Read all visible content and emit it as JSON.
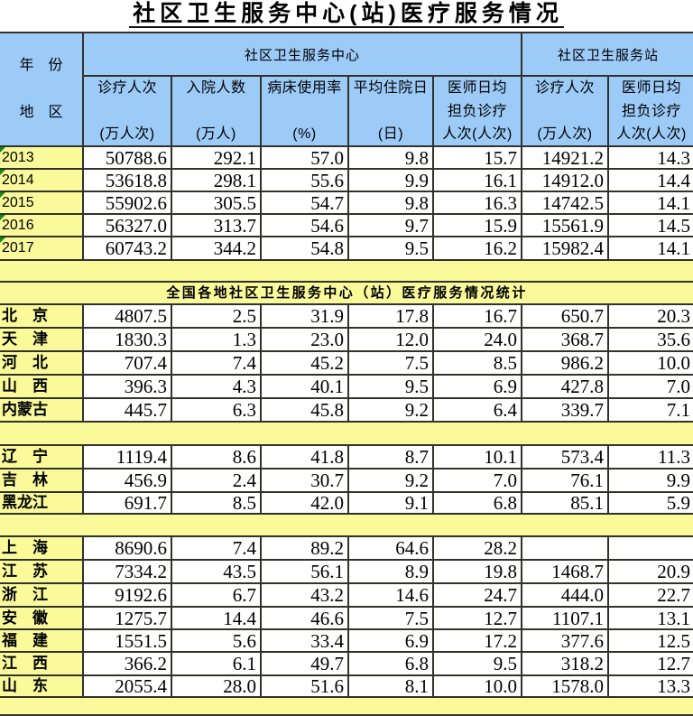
{
  "page_title": "社区卫生服务中心(站)医疗服务情况",
  "colors": {
    "header_blue": "#9dcbf8",
    "label_yellow": "#fafa9b",
    "border_dark": "#32322c",
    "flag_green": "#168a16"
  },
  "table": {
    "corner": {
      "line1": "年　份",
      "line2": "地　区"
    },
    "groups": [
      {
        "label": "社区卫生服务中心"
      },
      {
        "label": "社区卫生服务站"
      }
    ],
    "columns": [
      {
        "l1": "诊疗人次",
        "l2": "",
        "l3": "(万人次)"
      },
      {
        "l1": "入院人数",
        "l2": "",
        "l3": "(万人)"
      },
      {
        "l1": "病床使用率",
        "l2": "",
        "l3": "(%)"
      },
      {
        "l1": "平均住院日",
        "l2": "",
        "l3": "(日)"
      },
      {
        "l1": "医师日均",
        "l2": "担负诊疗",
        "l3": "人次(人次)"
      },
      {
        "l1": "诊疗人次",
        "l2": "",
        "l3": "(万人次)"
      },
      {
        "l1": "医师日均",
        "l2": "担负诊疗",
        "l3": "人次(人次)"
      }
    ],
    "rows": [
      {
        "type": "year",
        "label": "2013",
        "flag": true,
        "values": [
          "50788.6",
          "292.1",
          "57.0",
          "9.8",
          "15.7",
          "14921.2",
          "14.3"
        ]
      },
      {
        "type": "year",
        "label": "2014",
        "flag": true,
        "values": [
          "53618.8",
          "298.1",
          "55.6",
          "9.9",
          "16.1",
          "14912.0",
          "14.4"
        ]
      },
      {
        "type": "year",
        "label": "2015",
        "flag": true,
        "values": [
          "55902.6",
          "305.5",
          "54.7",
          "9.8",
          "16.3",
          "14742.5",
          "14.1"
        ]
      },
      {
        "type": "year",
        "label": "2016",
        "flag": true,
        "values": [
          "56327.0",
          "313.7",
          "54.6",
          "9.7",
          "15.9",
          "15561.9",
          "14.5"
        ]
      },
      {
        "type": "year",
        "label": "2017",
        "flag": true,
        "values": [
          "60743.2",
          "344.2",
          "54.8",
          "9.5",
          "16.2",
          "15982.4",
          "14.1"
        ]
      },
      {
        "type": "spacer"
      },
      {
        "type": "section",
        "label": "全国各地社区卫生服务中心（站）医疗服务情况统计"
      },
      {
        "type": "region",
        "label": "北　京",
        "values": [
          "4807.5",
          "2.5",
          "31.9",
          "17.8",
          "16.7",
          "650.7",
          "20.3"
        ]
      },
      {
        "type": "region",
        "label": "天　津",
        "values": [
          "1830.3",
          "1.3",
          "23.0",
          "12.0",
          "24.0",
          "368.7",
          "35.6"
        ]
      },
      {
        "type": "region",
        "label": "河　北",
        "values": [
          "707.4",
          "7.4",
          "45.2",
          "7.5",
          "8.5",
          "986.2",
          "10.0"
        ]
      },
      {
        "type": "region",
        "label": "山　西",
        "values": [
          "396.3",
          "4.3",
          "40.1",
          "9.5",
          "6.9",
          "427.8",
          "7.0"
        ]
      },
      {
        "type": "region",
        "label": "内蒙古",
        "values": [
          "445.7",
          "6.3",
          "45.8",
          "9.2",
          "6.4",
          "339.7",
          "7.1"
        ]
      },
      {
        "type": "spacer"
      },
      {
        "type": "region",
        "label": "辽　宁",
        "values": [
          "1119.4",
          "8.6",
          "41.8",
          "8.7",
          "10.1",
          "573.4",
          "11.3"
        ]
      },
      {
        "type": "region",
        "label": "吉　林",
        "values": [
          "456.9",
          "2.4",
          "30.7",
          "9.2",
          "7.0",
          "76.1",
          "9.9"
        ]
      },
      {
        "type": "region",
        "label": "黑龙江",
        "values": [
          "691.7",
          "8.5",
          "42.0",
          "9.1",
          "6.8",
          "85.1",
          "5.9"
        ]
      },
      {
        "type": "spacer"
      },
      {
        "type": "region",
        "label": "上　海",
        "values": [
          "8690.6",
          "7.4",
          "89.2",
          "64.6",
          "28.2",
          "",
          ""
        ]
      },
      {
        "type": "region",
        "label": "江　苏",
        "values": [
          "7334.2",
          "43.5",
          "56.1",
          "8.9",
          "19.8",
          "1468.7",
          "20.9"
        ]
      },
      {
        "type": "region",
        "label": "浙　江",
        "values": [
          "9192.6",
          "6.7",
          "43.2",
          "14.6",
          "24.7",
          "444.0",
          "22.7"
        ]
      },
      {
        "type": "region",
        "label": "安　徽",
        "values": [
          "1275.7",
          "14.4",
          "46.6",
          "7.5",
          "12.7",
          "1107.1",
          "13.1"
        ]
      },
      {
        "type": "region",
        "label": "福　建",
        "values": [
          "1551.5",
          "5.6",
          "33.4",
          "6.9",
          "17.2",
          "377.6",
          "12.5"
        ]
      },
      {
        "type": "region",
        "label": "江　西",
        "values": [
          "366.2",
          "6.1",
          "49.7",
          "6.8",
          "9.5",
          "318.2",
          "12.7"
        ]
      },
      {
        "type": "region",
        "label": "山　东",
        "values": [
          "2055.4",
          "28.0",
          "51.6",
          "8.1",
          "10.0",
          "1578.0",
          "13.3"
        ]
      },
      {
        "type": "spacer"
      }
    ]
  }
}
